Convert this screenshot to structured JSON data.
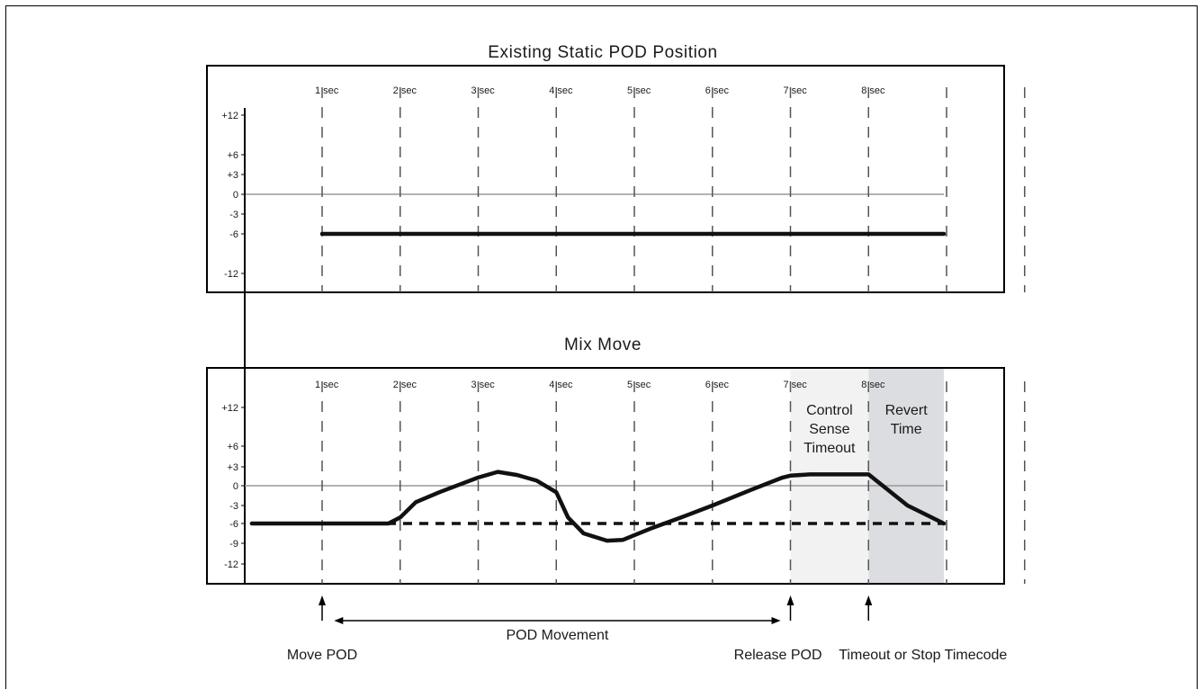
{
  "chart_data": [
    {
      "type": "line",
      "title": "Existing Static POD Position",
      "x_tick_labels": [
        "1 sec",
        "2 sec",
        "3 sec",
        "4 sec",
        "5 sec",
        "6 sec",
        "7 sec",
        "8 sec"
      ],
      "y_ticks": [
        12,
        6,
        3,
        0,
        -3,
        -6,
        -12
      ],
      "y_tick_labels": [
        "+12",
        "+6",
        "+3",
        "0",
        "-3",
        "-6",
        "-12"
      ],
      "xlim": [
        0,
        9
      ],
      "series": [
        {
          "x": [
            0,
            9
          ],
          "y": [
            -6,
            -6
          ],
          "style": "solid"
        }
      ]
    },
    {
      "type": "line",
      "title": "Mix Move",
      "x_tick_labels": [
        "1 sec",
        "2 sec",
        "3 sec",
        "4 sec",
        "5 sec",
        "6 sec",
        "7 sec",
        "8 sec"
      ],
      "y_ticks": [
        12,
        6,
        3,
        0,
        -3,
        -6,
        -9,
        -12
      ],
      "y_tick_labels": [
        "+12",
        "+6",
        "+3",
        "0",
        "-3",
        "-6",
        "-9",
        "-12"
      ],
      "xlim": [
        0,
        9
      ],
      "series": [
        {
          "style": "solid",
          "x": [
            -0.9,
            0.85,
            1.0,
            1.2,
            1.5,
            2.0,
            2.25,
            2.5,
            2.75,
            3.0,
            3.15,
            3.35,
            3.65,
            3.85,
            4.2,
            4.6,
            5.0,
            5.5,
            5.9,
            6.0,
            6.25,
            7.0,
            7.5,
            8.0,
            9.0
          ],
          "y": [
            -6,
            -6,
            -5,
            -2.5,
            -1,
            1.3,
            2.2,
            1.7,
            0.8,
            -1,
            -5,
            -7.5,
            -8.6,
            -8.5,
            -6.8,
            -5,
            -3,
            -0.6,
            1.3,
            1.6,
            1.8,
            1.8,
            -3,
            -6,
            -6
          ]
        },
        {
          "style": "dashed",
          "x": [
            0,
            9
          ],
          "y": [
            -6,
            -6
          ]
        }
      ],
      "regions": [
        {
          "x_from": 6,
          "x_to": 7,
          "label_lines": [
            "Control",
            "Sense",
            "Timeout"
          ],
          "color": "#f2f2f2"
        },
        {
          "x_from": 7,
          "x_to": 8,
          "label_lines": [
            "Revert",
            "Time"
          ],
          "color": "#dcdde0"
        }
      ],
      "annotations": [
        {
          "x": 0,
          "label": "Move POD"
        },
        {
          "x": 6,
          "label": "Release POD"
        },
        {
          "x": 7,
          "label": "Timeout or Stop Timecode"
        }
      ],
      "span_annotation": {
        "x_from": 0.2,
        "x_to": 5.85,
        "label": "POD Movement"
      }
    }
  ]
}
